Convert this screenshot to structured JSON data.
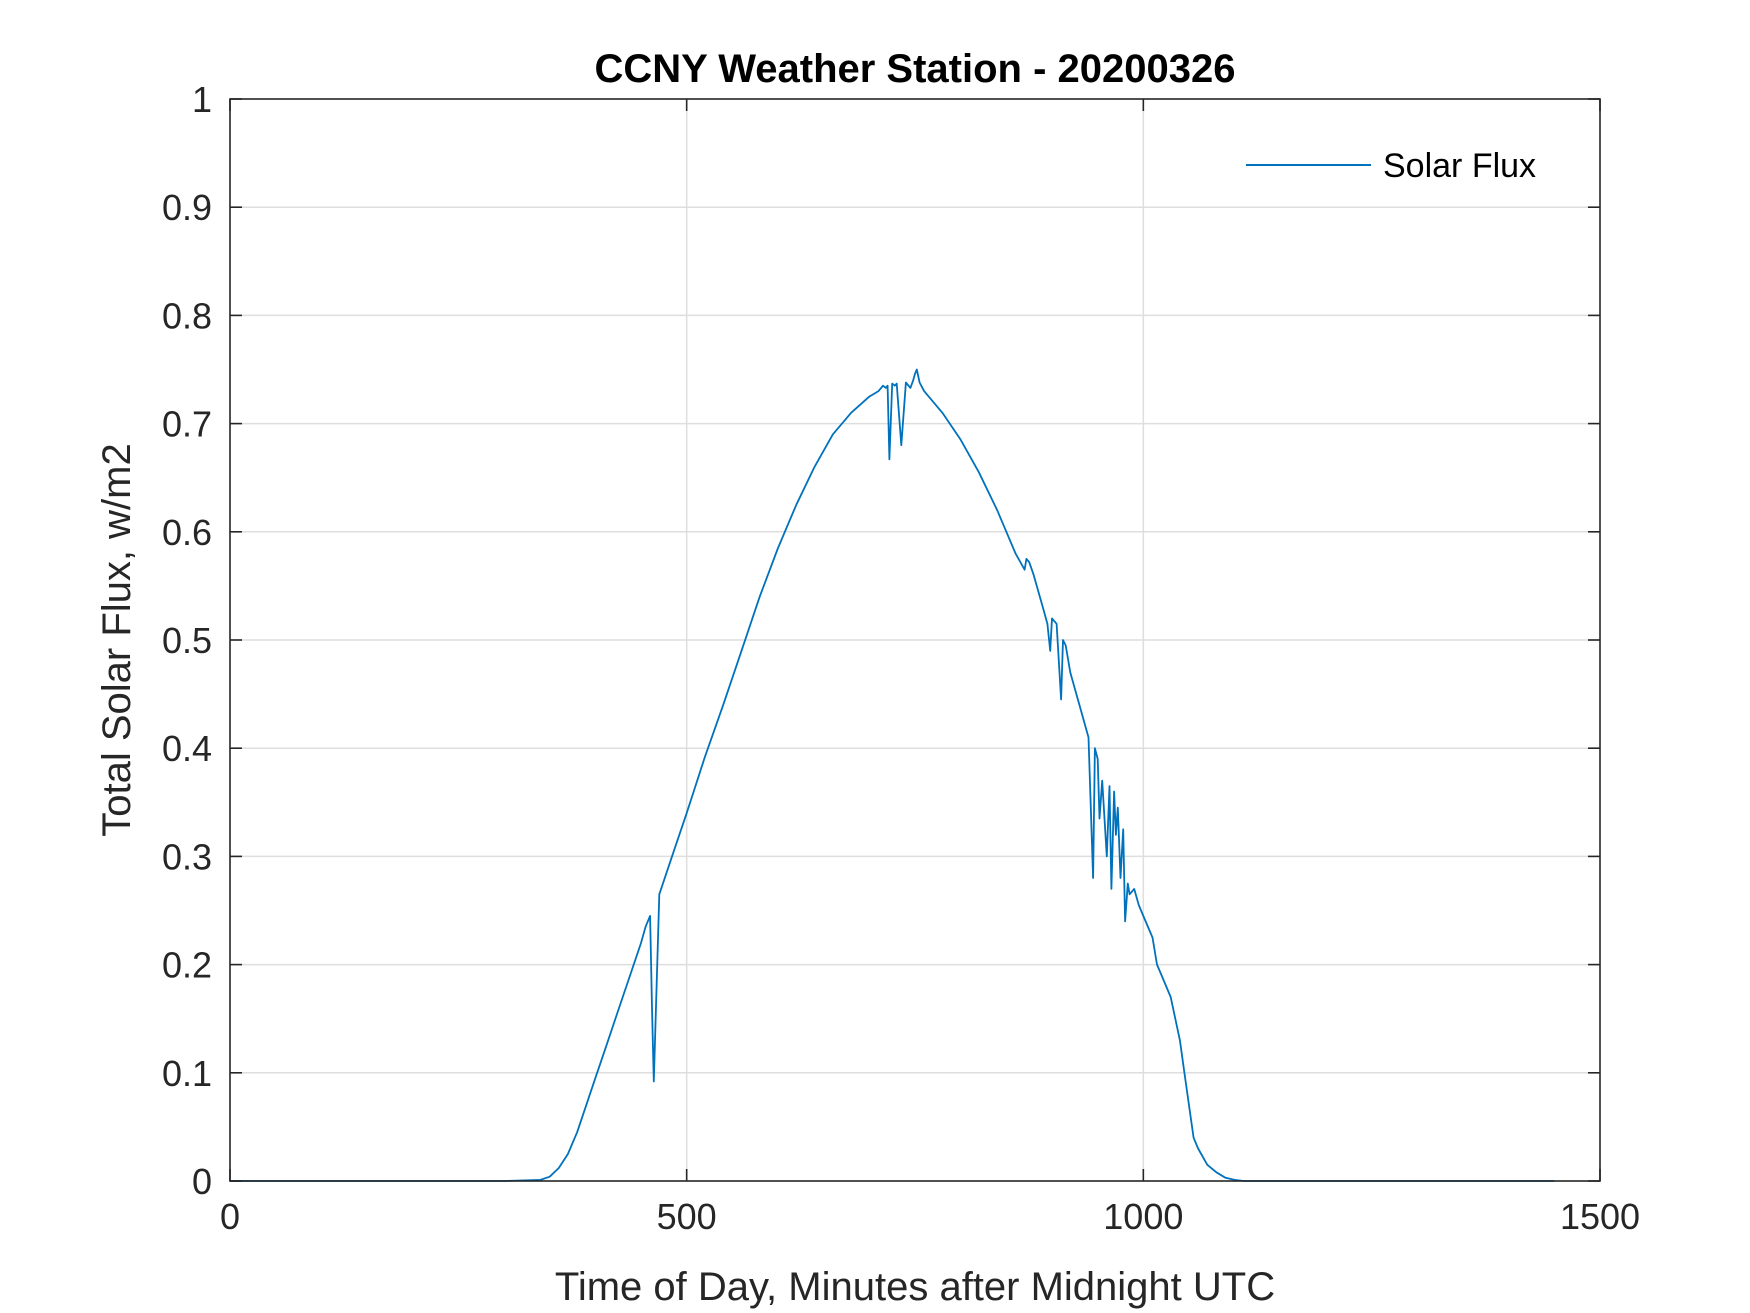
{
  "chart_data": {
    "type": "line",
    "title": "CCNY Weather Station - 20200326",
    "xlabel": "Time of Day, Minutes after Midnight UTC",
    "ylabel": "Total Solar Flux, w/m2",
    "xlim": [
      0,
      1500
    ],
    "ylim": [
      0,
      1
    ],
    "xticks": [
      0,
      500,
      1000,
      1500
    ],
    "xtick_labels": [
      "0",
      "500",
      "1000",
      "1500"
    ],
    "yticks": [
      0,
      0.1,
      0.2,
      0.3,
      0.4,
      0.5,
      0.6,
      0.7,
      0.8,
      0.9,
      1
    ],
    "ytick_labels": [
      "0",
      "0.1",
      "0.2",
      "0.3",
      "0.4",
      "0.5",
      "0.6",
      "0.7",
      "0.8",
      "0.9",
      "1"
    ],
    "grid": true,
    "legend_position": "top-right",
    "series": [
      {
        "name": "Solar Flux",
        "color": "#0072BD",
        "x": [
          0,
          100,
          200,
          300,
          340,
          350,
          360,
          370,
          380,
          390,
          400,
          410,
          420,
          430,
          440,
          450,
          455,
          460,
          462,
          464,
          470,
          480,
          490,
          500,
          520,
          540,
          560,
          580,
          600,
          620,
          640,
          660,
          680,
          700,
          710,
          715,
          718,
          720,
          722,
          725,
          728,
          730,
          735,
          740,
          745,
          748,
          750,
          752,
          755,
          760,
          780,
          800,
          820,
          840,
          860,
          870,
          872,
          875,
          880,
          890,
          895,
          898,
          900,
          905,
          910,
          912,
          915,
          920,
          930,
          940,
          945,
          947,
          950,
          952,
          955,
          960,
          963,
          965,
          968,
          970,
          972,
          975,
          978,
          980,
          983,
          985,
          990,
          995,
          1000,
          1010,
          1015,
          1020,
          1030,
          1035,
          1040,
          1045,
          1050,
          1055,
          1060,
          1070,
          1080,
          1090,
          1100,
          1110,
          1200,
          1300,
          1450
        ],
        "values": [
          0,
          0,
          0,
          0,
          0.001,
          0.004,
          0.012,
          0.025,
          0.045,
          0.07,
          0.095,
          0.12,
          0.145,
          0.17,
          0.195,
          0.22,
          0.235,
          0.245,
          0.16,
          0.092,
          0.265,
          0.29,
          0.315,
          0.34,
          0.392,
          0.44,
          0.49,
          0.54,
          0.585,
          0.625,
          0.66,
          0.69,
          0.71,
          0.725,
          0.73,
          0.735,
          0.733,
          0.735,
          0.667,
          0.737,
          0.735,
          0.737,
          0.68,
          0.738,
          0.733,
          0.74,
          0.746,
          0.75,
          0.738,
          0.73,
          0.71,
          0.685,
          0.655,
          0.62,
          0.58,
          0.565,
          0.575,
          0.572,
          0.56,
          0.53,
          0.515,
          0.49,
          0.52,
          0.515,
          0.445,
          0.5,
          0.495,
          0.47,
          0.44,
          0.41,
          0.28,
          0.4,
          0.39,
          0.335,
          0.37,
          0.3,
          0.365,
          0.27,
          0.36,
          0.32,
          0.345,
          0.28,
          0.325,
          0.24,
          0.275,
          0.265,
          0.27,
          0.255,
          0.245,
          0.225,
          0.2,
          0.19,
          0.17,
          0.15,
          0.13,
          0.1,
          0.07,
          0.04,
          0.03,
          0.015,
          0.008,
          0.003,
          0.001,
          0,
          0,
          0,
          0
        ]
      }
    ]
  }
}
